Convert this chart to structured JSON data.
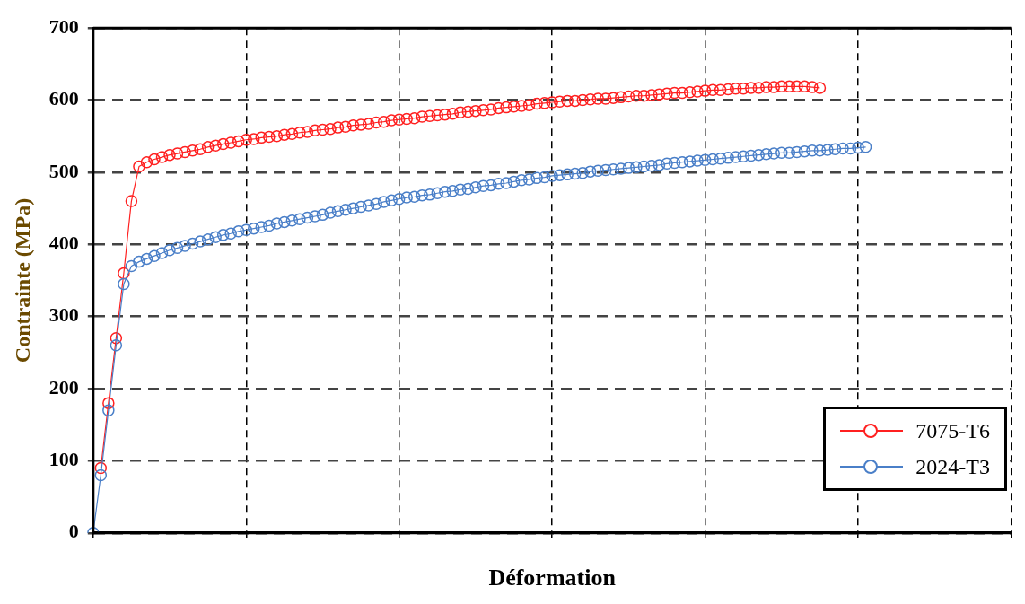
{
  "chart_data": {
    "type": "line",
    "xlabel": "Déformation",
    "ylabel": "Contrainte (MPa)",
    "categories": [
      null,
      null,
      null,
      null,
      null,
      null,
      null,
      null,
      null,
      null,
      null,
      null,
      null,
      null,
      null,
      null,
      null,
      null,
      null,
      null,
      null,
      null,
      null,
      null,
      null,
      null,
      null,
      null,
      null,
      null,
      null,
      null,
      null,
      null,
      null,
      null,
      null,
      null,
      null,
      null,
      null,
      null,
      null,
      null,
      null,
      null,
      null,
      null,
      null,
      null,
      null,
      null,
      null,
      null,
      null,
      null,
      null,
      null,
      null,
      null,
      null,
      null,
      null,
      null,
      null,
      null,
      null,
      null,
      null,
      null,
      null,
      null,
      null,
      null,
      null,
      null,
      null,
      null,
      null,
      null,
      null,
      null,
      null,
      null,
      null,
      null,
      null,
      null,
      null,
      null,
      null,
      null,
      null,
      null,
      null,
      null,
      null,
      null,
      null,
      null,
      null,
      null,
      null,
      null,
      null,
      null,
      null,
      null,
      null,
      null,
      null,
      null,
      null,
      null,
      null,
      null,
      null,
      null,
      null,
      null,
      null
    ],
    "ylim": [
      0,
      700
    ],
    "yticks": [
      0,
      100,
      200,
      300,
      400,
      500,
      600,
      700
    ],
    "grid": true,
    "legend": "bottom right",
    "marker": "circle",
    "tick_labels": "y",
    "series": [
      {
        "name": "7075-T6",
        "color": "#ff2020",
        "values": [
          null,
          90,
          180,
          270,
          360,
          460,
          508,
          514,
          518,
          521,
          524,
          526,
          528,
          530,
          532,
          535,
          537,
          539,
          541,
          543,
          545,
          546,
          548,
          549,
          550,
          552,
          553,
          555,
          556,
          558,
          559,
          560,
          562,
          563,
          565,
          566,
          567,
          569,
          570,
          572,
          573,
          574,
          575,
          577,
          578,
          579,
          580,
          581,
          583,
          584,
          585,
          586,
          587,
          589,
          590,
          591,
          592,
          593,
          595,
          596,
          597,
          598,
          599,
          599,
          600,
          601,
          602,
          602,
          603,
          604,
          605,
          606,
          606,
          607,
          608,
          609,
          610,
          610,
          611,
          612,
          613,
          614,
          614,
          615,
          616,
          616,
          617,
          617,
          618,
          618,
          619,
          619,
          619,
          619,
          618,
          617,
          null,
          null,
          null,
          null,
          null,
          null,
          null,
          null,
          null,
          null,
          null,
          null,
          null,
          null,
          null,
          null,
          null,
          null,
          null,
          null,
          null,
          null,
          null,
          null,
          null
        ]
      },
      {
        "name": "2024-T3",
        "color": "#4a7fc8",
        "values": [
          0,
          80,
          170,
          260,
          345,
          370,
          376,
          380,
          384,
          388,
          392,
          395,
          398,
          401,
          404,
          407,
          410,
          413,
          415,
          418,
          420,
          422,
          424,
          426,
          429,
          431,
          433,
          435,
          437,
          439,
          441,
          444,
          446,
          448,
          450,
          452,
          454,
          456,
          459,
          461,
          463,
          465,
          466,
          468,
          469,
          471,
          473,
          474,
          476,
          477,
          479,
          481,
          482,
          484,
          485,
          487,
          489,
          490,
          492,
          493,
          495,
          496,
          497,
          498,
          499,
          501,
          502,
          503,
          504,
          505,
          506,
          507,
          508,
          509,
          510,
          512,
          513,
          514,
          515,
          516,
          517,
          518,
          519,
          520,
          521,
          522,
          523,
          524,
          525,
          526,
          527,
          527,
          528,
          529,
          530,
          530,
          531,
          532,
          533,
          533,
          534,
          535,
          null,
          null,
          null,
          null,
          null,
          null,
          null,
          null,
          null,
          null,
          null,
          null,
          null,
          null,
          null,
          null,
          null,
          null,
          null
        ]
      }
    ]
  }
}
